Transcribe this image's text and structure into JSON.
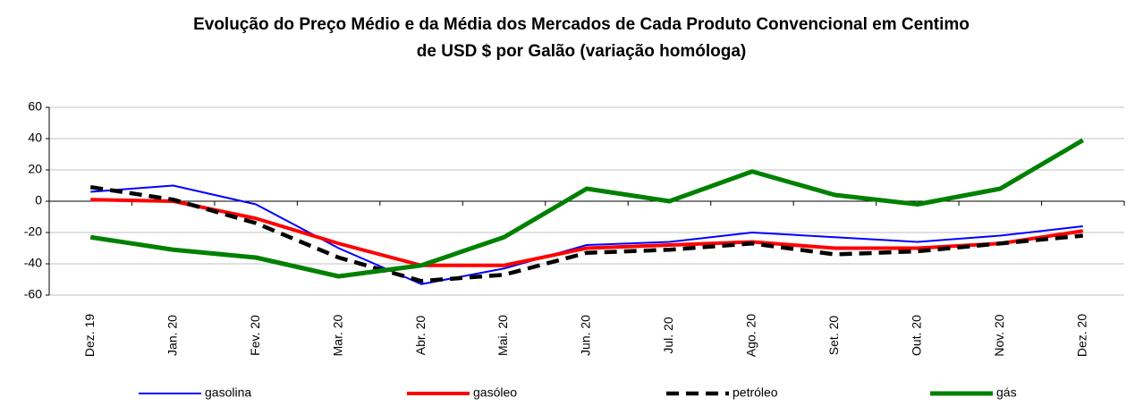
{
  "chart_data": {
    "type": "line",
    "title": [
      "Evolução do Preço Médio e da Média dos Mercados de Cada Produto Convencional em Centimo",
      "de USD $ por Galão (variação homóloga)"
    ],
    "categories": [
      "Dez. 19",
      "Jan. 20",
      "Fev. 20",
      "Mar. 20",
      "Abr. 20",
      "Mai. 20",
      "Jun. 20",
      "Jul. 20",
      "Ago. 20",
      "Set. 20",
      "Out. 20",
      "Nov. 20",
      "Dez. 20"
    ],
    "series": [
      {
        "name": "gasolina",
        "color": "#0000ff",
        "values": [
          6,
          10,
          -2,
          -30,
          -53,
          -43,
          -28,
          -26,
          -20,
          -23,
          -26,
          -22,
          -16
        ]
      },
      {
        "name": "gasóleo",
        "color": "#ff0000",
        "values": [
          1,
          0,
          -11,
          -27,
          -41,
          -41,
          -30,
          -28,
          -26,
          -30,
          -30,
          -27,
          -19
        ]
      },
      {
        "name": "petróleo",
        "color": "#000000",
        "values": [
          9,
          1,
          -14,
          -36,
          -51,
          -47,
          -33,
          -31,
          -27,
          -34,
          -32,
          -27,
          -22
        ]
      },
      {
        "name": "gás",
        "color": "#008000",
        "values": [
          -23,
          -31,
          -36,
          -48,
          -41,
          -23,
          8,
          0,
          19,
          4,
          -2,
          8,
          39
        ]
      }
    ],
    "ylim": [
      -60,
      60
    ],
    "yticks": [
      -60,
      -40,
      -20,
      0,
      20,
      40,
      60
    ],
    "grid": true,
    "legend": "bottom"
  }
}
